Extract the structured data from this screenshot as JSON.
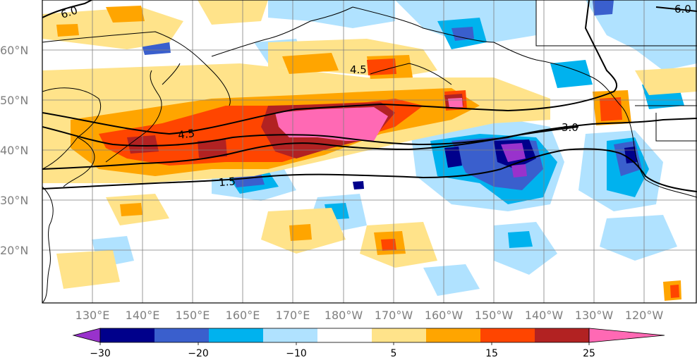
{
  "map": {
    "lat_labels": [
      "60°N",
      "50°N",
      "40°N",
      "30°N",
      "20°N"
    ],
    "lon_labels": [
      "130°E",
      "140°E",
      "150°E",
      "160°E",
      "170°E",
      "180°W",
      "170°W",
      "160°W",
      "150°W",
      "140°W",
      "130°W",
      "120°W"
    ],
    "contour_labels": [
      "6.0",
      "4.5",
      "4.5",
      "3.0",
      "1.5",
      "6.0"
    ],
    "anomaly_colors": {
      "le_-25": "#9932cc",
      "-25_-20": "#00008b",
      "-20_-15": "#3a5fcd",
      "-15_-10": "#00b2ee",
      "-10_-5": "#b0e2ff",
      "-5_5": "#ffffff",
      "5_10": "#ffe38a",
      "10_15": "#ffa500",
      "15_20": "#ff4500",
      "20_25": "#b22222",
      "ge_25": "#ff69b4"
    }
  },
  "colorbar": {
    "tick_labels": [
      "−30",
      "−20",
      "−10",
      "5",
      "15",
      "25"
    ],
    "colors": [
      "#9932cc",
      "#00008b",
      "#3a5fcd",
      "#00b2ee",
      "#b0e2ff",
      "#ffffff",
      "#ffe38a",
      "#ffa500",
      "#ff4500",
      "#b22222",
      "#ff69b4"
    ]
  }
}
